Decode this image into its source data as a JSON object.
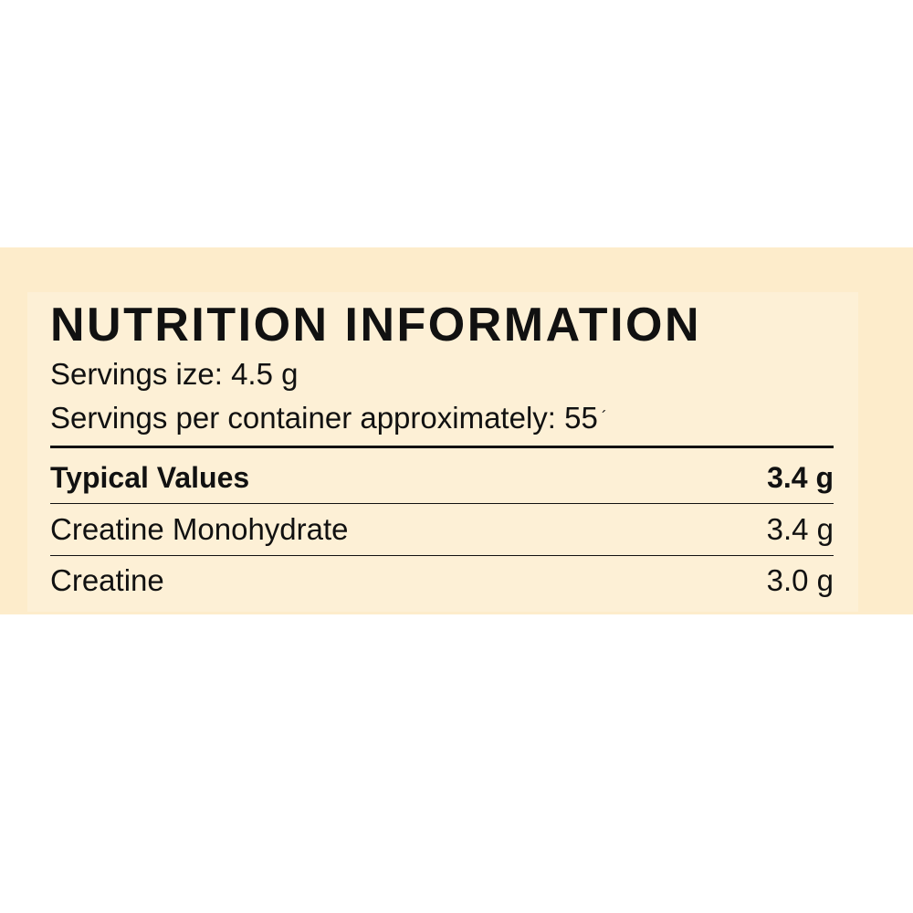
{
  "panel": {
    "title": "NUTRITION INFORMATION",
    "serving_size": "Servings ize: 4.5 g",
    "servings_per_container": "Servings per container approximately: 55",
    "servings_mark": "´"
  },
  "table": {
    "header": {
      "label": "Typical Values",
      "value": "3.4 g"
    },
    "rows": [
      {
        "label": "Creatine Monohydrate",
        "value": "3.4 g"
      },
      {
        "label": "Creatine",
        "value": "3.0 g"
      }
    ]
  },
  "colors": {
    "background": "#fdeccb",
    "panel": "#fdf0d6",
    "text": "#111111"
  }
}
